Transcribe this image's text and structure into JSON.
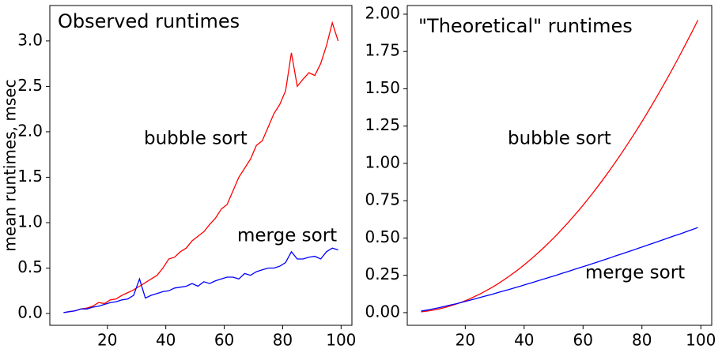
{
  "chart_data": [
    {
      "type": "line",
      "title": "Observed runtimes",
      "ylabel": "mean runtimes, msec",
      "x": [
        5,
        7,
        9,
        11,
        13,
        15,
        17,
        19,
        21,
        23,
        25,
        27,
        29,
        31,
        33,
        35,
        37,
        39,
        41,
        43,
        45,
        47,
        49,
        51,
        53,
        55,
        57,
        59,
        61,
        63,
        65,
        67,
        69,
        71,
        73,
        75,
        77,
        79,
        81,
        83,
        85,
        87,
        89,
        91,
        93,
        95,
        97,
        99
      ],
      "series": [
        {
          "name": "bubble sort",
          "color": "#ff0000",
          "label_color": "#ff5555",
          "values": [
            0.01,
            0.02,
            0.03,
            0.05,
            0.06,
            0.08,
            0.12,
            0.11,
            0.15,
            0.16,
            0.2,
            0.23,
            0.26,
            0.3,
            0.34,
            0.38,
            0.42,
            0.5,
            0.6,
            0.62,
            0.68,
            0.72,
            0.8,
            0.85,
            0.9,
            0.98,
            1.05,
            1.15,
            1.2,
            1.35,
            1.5,
            1.6,
            1.7,
            1.85,
            1.9,
            2.05,
            2.2,
            2.3,
            2.45,
            2.87,
            2.5,
            2.58,
            2.65,
            2.62,
            2.75,
            2.95,
            3.2,
            3.0
          ]
        },
        {
          "name": "merge sort",
          "color": "#0000ff",
          "label_color": "#5555ff",
          "values": [
            0.01,
            0.02,
            0.03,
            0.05,
            0.05,
            0.07,
            0.08,
            0.1,
            0.12,
            0.13,
            0.15,
            0.16,
            0.2,
            0.38,
            0.17,
            0.2,
            0.22,
            0.24,
            0.25,
            0.28,
            0.29,
            0.3,
            0.33,
            0.3,
            0.35,
            0.33,
            0.36,
            0.38,
            0.4,
            0.4,
            0.38,
            0.44,
            0.42,
            0.46,
            0.48,
            0.5,
            0.5,
            0.52,
            0.56,
            0.68,
            0.6,
            0.6,
            0.62,
            0.63,
            0.6,
            0.68,
            0.72,
            0.7
          ]
        }
      ],
      "xlim": [
        0.3,
        103.7
      ],
      "xticks": [
        20,
        40,
        60,
        80,
        100
      ],
      "ylim": [
        -0.13,
        3.39
      ],
      "yticks": [
        {
          "value": 0,
          "label": "0.0"
        },
        0.5,
        {
          "value": 1,
          "label": "1.0"
        },
        1.5,
        {
          "value": 2,
          "label": "2.0"
        },
        2.5,
        {
          "value": 3,
          "label": "3.0"
        }
      ]
    },
    {
      "type": "line",
      "title": "\"Theoretical\" runtimes",
      "x": [
        5,
        7,
        9,
        11,
        13,
        15,
        17,
        19,
        21,
        23,
        25,
        27,
        29,
        31,
        33,
        35,
        37,
        39,
        41,
        43,
        45,
        47,
        49,
        51,
        53,
        55,
        57,
        59,
        61,
        63,
        65,
        67,
        69,
        71,
        73,
        75,
        77,
        79,
        81,
        83,
        85,
        87,
        89,
        91,
        93,
        95,
        97,
        99
      ],
      "series": [
        {
          "name": "bubble sort",
          "color": "#ff0000",
          "label_color": "#ff5555",
          "values": [
            0.005,
            0.01,
            0.016,
            0.024,
            0.034,
            0.045,
            0.058,
            0.072,
            0.088,
            0.106,
            0.125,
            0.146,
            0.168,
            0.192,
            0.218,
            0.245,
            0.274,
            0.304,
            0.336,
            0.37,
            0.405,
            0.442,
            0.48,
            0.52,
            0.562,
            0.605,
            0.65,
            0.696,
            0.744,
            0.794,
            0.845,
            0.898,
            0.952,
            1.008,
            1.066,
            1.125,
            1.186,
            1.248,
            1.312,
            1.378,
            1.445,
            1.514,
            1.584,
            1.656,
            1.73,
            1.805,
            1.882,
            1.96
          ]
        },
        {
          "name": "merge sort",
          "color": "#0000ff",
          "label_color": "#5555ff",
          "values": [
            0.01,
            0.017,
            0.025,
            0.033,
            0.042,
            0.051,
            0.06,
            0.07,
            0.08,
            0.09,
            0.101,
            0.112,
            0.122,
            0.134,
            0.145,
            0.156,
            0.168,
            0.179,
            0.191,
            0.203,
            0.215,
            0.227,
            0.239,
            0.251,
            0.264,
            0.276,
            0.289,
            0.302,
            0.314,
            0.327,
            0.34,
            0.353,
            0.366,
            0.38,
            0.393,
            0.406,
            0.419,
            0.433,
            0.446,
            0.46,
            0.473,
            0.487,
            0.501,
            0.515,
            0.528,
            0.542,
            0.556,
            0.57
          ]
        }
      ],
      "xlim": [
        0.3,
        103.7
      ],
      "xticks": [
        20,
        40,
        60,
        80,
        100
      ],
      "ylim": [
        -0.085,
        2.058
      ],
      "yticks": [
        {
          "value": 0,
          "label": "0.00"
        },
        0.25,
        {
          "value": 0.5,
          "label": "0.50"
        },
        0.75,
        {
          "value": 1,
          "label": "1.00"
        },
        1.25,
        {
          "value": 1.5,
          "label": "1.50"
        },
        1.75,
        {
          "value": 2,
          "label": "2.00"
        }
      ]
    }
  ]
}
